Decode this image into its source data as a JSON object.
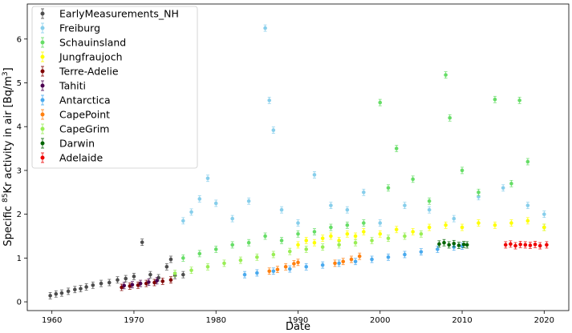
{
  "chart_data": {
    "type": "scatter",
    "xlabel": "Date",
    "ylabel_prefix": "Specific ",
    "ylabel_sup": "85",
    "ylabel_mid": "Kr activity in air [Bq/m",
    "ylabel_sup2": "3",
    "ylabel_suffix": "]",
    "xlim": [
      1957,
      2023
    ],
    "ylim": [
      -0.2,
      6.8
    ],
    "xticks": [
      1960,
      1970,
      1980,
      1990,
      2000,
      2010,
      2020
    ],
    "yticks": [
      0,
      1,
      2,
      3,
      4,
      5,
      6
    ],
    "grid": false,
    "legend_position": "top-left",
    "series": [
      {
        "name": "EarlyMeasurements_NH",
        "color": "#4d4d4d",
        "points": [
          [
            1959.8,
            0.14
          ],
          [
            1960.5,
            0.18
          ],
          [
            1961.2,
            0.2
          ],
          [
            1962,
            0.24
          ],
          [
            1962.8,
            0.28
          ],
          [
            1963.5,
            0.3
          ],
          [
            1964.2,
            0.34
          ],
          [
            1965,
            0.38
          ],
          [
            1966,
            0.42
          ],
          [
            1967,
            0.44
          ],
          [
            1968,
            0.5
          ],
          [
            1969,
            0.53
          ],
          [
            1970,
            0.58
          ],
          [
            1971,
            1.36
          ],
          [
            1972,
            0.62
          ],
          [
            1973,
            0.55
          ],
          [
            1974,
            0.8
          ],
          [
            1974.5,
            0.97
          ],
          [
            1975,
            0.6
          ],
          [
            1976,
            0.62
          ]
        ]
      },
      {
        "name": "Freiburg",
        "color": "#87ceeb",
        "points": [
          [
            1976,
            1.85
          ],
          [
            1977,
            2.05
          ],
          [
            1978,
            2.35
          ],
          [
            1979,
            2.82
          ],
          [
            1980,
            2.25
          ],
          [
            1982,
            1.9
          ],
          [
            1984,
            2.3
          ],
          [
            1986,
            6.25
          ],
          [
            1986.5,
            4.6
          ],
          [
            1987,
            3.92
          ],
          [
            1988,
            2.1
          ],
          [
            1990,
            1.8
          ],
          [
            1992,
            2.9
          ],
          [
            1994,
            2.2
          ],
          [
            1996,
            2.1
          ],
          [
            1998,
            2.5
          ],
          [
            2000,
            1.8
          ],
          [
            2003,
            2.2
          ],
          [
            2006,
            2.1
          ],
          [
            2009,
            1.9
          ],
          [
            2012,
            2.4
          ],
          [
            2015,
            2.6
          ],
          [
            2018,
            2.2
          ],
          [
            2020,
            2.0
          ]
        ]
      },
      {
        "name": "Schauinsland",
        "color": "#66dd66",
        "points": [
          [
            1976,
            1.0
          ],
          [
            1978,
            1.1
          ],
          [
            1980,
            1.2
          ],
          [
            1982,
            1.3
          ],
          [
            1984,
            1.35
          ],
          [
            1986,
            1.5
          ],
          [
            1988,
            1.4
          ],
          [
            1990,
            1.55
          ],
          [
            1992,
            1.6
          ],
          [
            1994,
            1.7
          ],
          [
            1996,
            1.75
          ],
          [
            1998,
            1.8
          ],
          [
            2000,
            4.55
          ],
          [
            2001,
            2.6
          ],
          [
            2002,
            3.5
          ],
          [
            2004,
            2.8
          ],
          [
            2006,
            2.3
          ],
          [
            2008,
            5.18
          ],
          [
            2008.5,
            4.2
          ],
          [
            2010,
            3.0
          ],
          [
            2012,
            2.5
          ],
          [
            2014,
            4.62
          ],
          [
            2016,
            2.7
          ],
          [
            2017,
            4.6
          ],
          [
            2018,
            3.2
          ],
          [
            2020,
            1.7
          ]
        ]
      },
      {
        "name": "Jungfraujoch",
        "color": "#ffff00",
        "points": [
          [
            1990,
            1.3
          ],
          [
            1991,
            1.4
          ],
          [
            1992,
            1.35
          ],
          [
            1993,
            1.45
          ],
          [
            1994,
            1.5
          ],
          [
            1995,
            1.4
          ],
          [
            1996,
            1.55
          ],
          [
            1997,
            1.5
          ],
          [
            1998,
            1.6
          ],
          [
            2000,
            1.55
          ],
          [
            2002,
            1.65
          ],
          [
            2004,
            1.6
          ],
          [
            2006,
            1.7
          ],
          [
            2008,
            1.75
          ],
          [
            2010,
            1.7
          ],
          [
            2012,
            1.8
          ],
          [
            2014,
            1.75
          ],
          [
            2016,
            1.8
          ],
          [
            2018,
            1.85
          ],
          [
            2020,
            1.7
          ]
        ]
      },
      {
        "name": "Terre-Adelie",
        "color": "#800000",
        "points": [
          [
            1968.5,
            0.33
          ],
          [
            1969.5,
            0.36
          ],
          [
            1970.5,
            0.38
          ],
          [
            1971.5,
            0.42
          ],
          [
            1972.5,
            0.44
          ],
          [
            1973.5,
            0.47
          ],
          [
            1974.5,
            0.5
          ]
        ]
      },
      {
        "name": "Tahiti",
        "color": "#4b0050",
        "points": [
          [
            1968.8,
            0.37
          ],
          [
            1969.8,
            0.39
          ],
          [
            1970.8,
            0.42
          ],
          [
            1971.8,
            0.45
          ],
          [
            1972.8,
            0.48
          ]
        ]
      },
      {
        "name": "Antarctica",
        "color": "#4aaaee",
        "points": [
          [
            1983.5,
            0.62
          ],
          [
            1985,
            0.66
          ],
          [
            1987,
            0.7
          ],
          [
            1989,
            0.75
          ],
          [
            1991,
            0.8
          ],
          [
            1993,
            0.84
          ],
          [
            1995,
            0.88
          ],
          [
            1997,
            0.92
          ],
          [
            1999,
            0.97
          ],
          [
            2001,
            1.02
          ],
          [
            2003,
            1.08
          ],
          [
            2005,
            1.14
          ],
          [
            2007,
            1.2
          ],
          [
            2009,
            1.25
          ],
          [
            2010,
            1.27
          ]
        ]
      },
      {
        "name": "CapePoint",
        "color": "#ff7f0e",
        "points": [
          [
            1986.5,
            0.7
          ],
          [
            1987.5,
            0.74
          ],
          [
            1988.5,
            0.8
          ],
          [
            1989.5,
            0.87
          ],
          [
            1990,
            0.9
          ],
          [
            1994.5,
            0.88
          ],
          [
            1995.5,
            0.92
          ],
          [
            1996.5,
            0.97
          ],
          [
            1997.5,
            1.04
          ]
        ]
      },
      {
        "name": "CapeGrim",
        "color": "#99ee55",
        "points": [
          [
            1975,
            0.65
          ],
          [
            1977,
            0.72
          ],
          [
            1979,
            0.8
          ],
          [
            1981,
            0.88
          ],
          [
            1983,
            0.95
          ],
          [
            1985,
            1.02
          ],
          [
            1987,
            1.08
          ],
          [
            1989,
            1.15
          ],
          [
            1991,
            1.2
          ],
          [
            1993,
            1.25
          ],
          [
            1995,
            1.3
          ],
          [
            1997,
            1.35
          ],
          [
            1999,
            1.4
          ],
          [
            2001,
            1.45
          ],
          [
            2003,
            1.5
          ],
          [
            2005,
            1.55
          ]
        ]
      },
      {
        "name": "Darwin",
        "color": "#006400",
        "points": [
          [
            2007.2,
            1.32
          ],
          [
            2007.8,
            1.35
          ],
          [
            2008.4,
            1.3
          ],
          [
            2009,
            1.33
          ],
          [
            2009.6,
            1.29
          ],
          [
            2010.2,
            1.31
          ],
          [
            2010.6,
            1.3
          ]
        ]
      },
      {
        "name": "Adelaide",
        "color": "#ee0000",
        "points": [
          [
            2015.3,
            1.3
          ],
          [
            2015.9,
            1.32
          ],
          [
            2016.5,
            1.28
          ],
          [
            2017.1,
            1.31
          ],
          [
            2017.7,
            1.3
          ],
          [
            2018.3,
            1.29
          ],
          [
            2018.9,
            1.31
          ],
          [
            2019.5,
            1.28
          ],
          [
            2020.3,
            1.3
          ]
        ]
      }
    ]
  }
}
